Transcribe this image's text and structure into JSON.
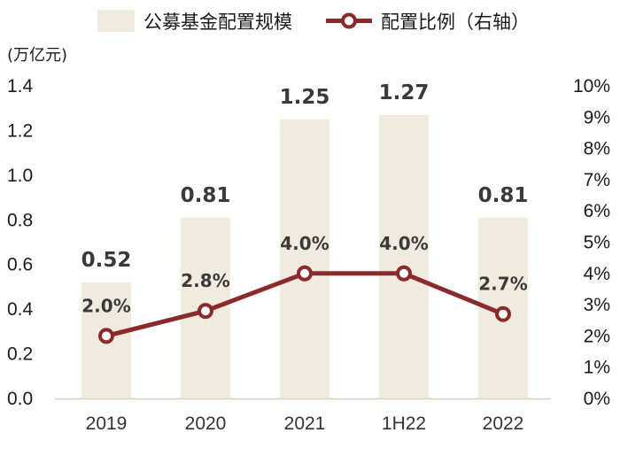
{
  "chart_data": {
    "type": "bar+line",
    "categories": [
      "2019",
      "2020",
      "2021",
      "1H22",
      "2022"
    ],
    "series": [
      {
        "name": "公募基金配置规模",
        "kind": "bar",
        "axis": "left",
        "color": "#F1EBDF",
        "values": [
          0.52,
          0.81,
          1.25,
          1.27,
          0.81
        ],
        "labels": [
          "0.52",
          "0.81",
          "1.25",
          "1.27",
          "0.81"
        ]
      },
      {
        "name": "配置比例（右轴）",
        "kind": "line",
        "axis": "right",
        "color": "#8B2A2A",
        "values": [
          2.0,
          2.8,
          4.0,
          4.0,
          2.7
        ],
        "labels": [
          "2.0%",
          "2.8%",
          "4.0%",
          "4.0%",
          "2.7%"
        ]
      }
    ],
    "left_axis": {
      "unit_label": "(万亿元)",
      "ylim": [
        0,
        1.4
      ],
      "ticks": [
        "0.0",
        "0.2",
        "0.4",
        "0.6",
        "0.8",
        "1.0",
        "1.2",
        "1.4"
      ]
    },
    "right_axis": {
      "ylim": [
        0,
        10
      ],
      "ticks": [
        "0%",
        "1%",
        "2%",
        "3%",
        "4%",
        "5%",
        "6%",
        "7%",
        "8%",
        "9%",
        "10%"
      ]
    },
    "legend_position": "top",
    "grid": false
  }
}
